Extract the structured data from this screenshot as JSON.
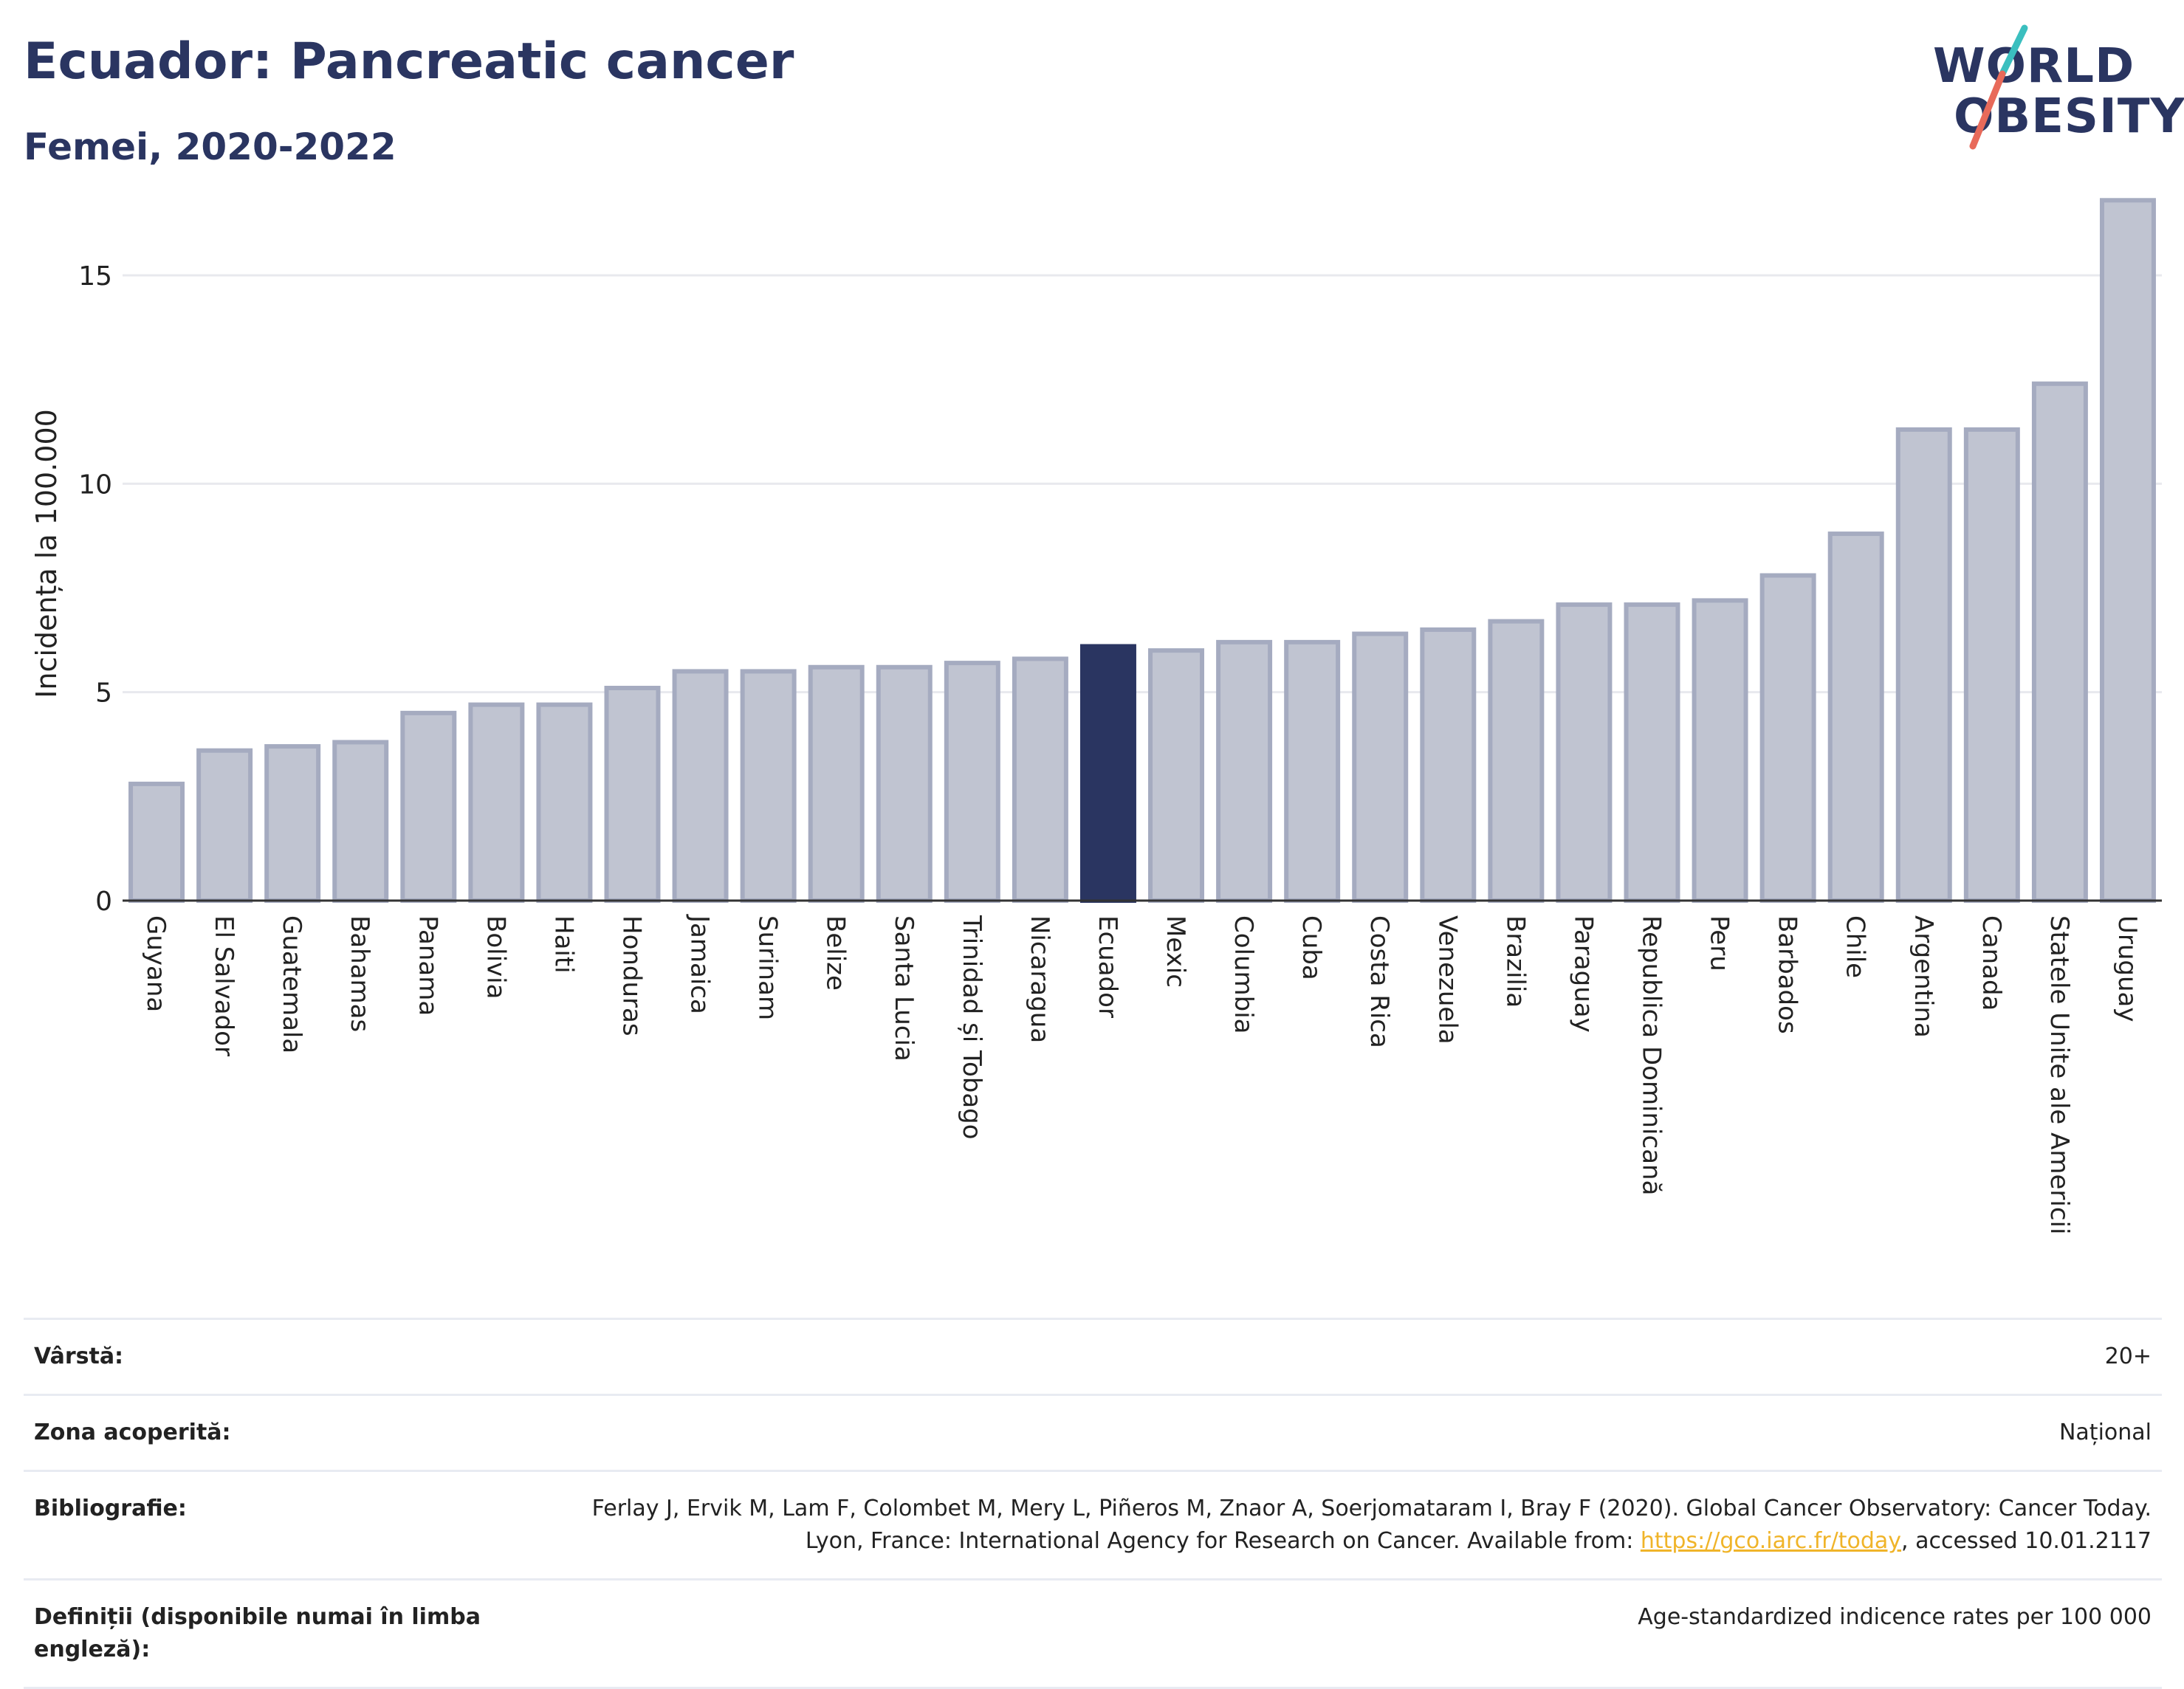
{
  "header": {
    "title": "Ecuador: Pancreatic cancer",
    "subtitle": "Femei, 2020-2022"
  },
  "logo": {
    "line1": "WORLD",
    "line2": "OBESITY",
    "colors": {
      "text": "#2a3561",
      "slash_top": "#3bbfbf",
      "slash_bottom": "#e86a5a"
    }
  },
  "colors": {
    "bar": "#c0c4d1",
    "bar_border": "#a5abc0",
    "highlight": "#2a3561",
    "grid": "#e8e9ee",
    "axis": "#333333"
  },
  "chart_data": {
    "type": "bar",
    "ylabel": "Incidența la 100.000",
    "ylim": [
      0,
      17
    ],
    "yticks": [
      0,
      5,
      10,
      15
    ],
    "grid": true,
    "highlight": "Ecuador",
    "categories": [
      "Guyana",
      "El Salvador",
      "Guatemala",
      "Bahamas",
      "Panama",
      "Bolivia",
      "Haiti",
      "Honduras",
      "Jamaica",
      "Surinam",
      "Belize",
      "Santa Lucia",
      "Trinidad și Tobago",
      "Nicaragua",
      "Ecuador",
      "Mexic",
      "Columbia",
      "Cuba",
      "Costa Rica",
      "Venezuela",
      "Brazilia",
      "Paraguay",
      "Republica Dominicană",
      "Peru",
      "Barbados",
      "Chile",
      "Argentina",
      "Canada",
      "Statele Unite ale Americii",
      "Uruguay"
    ],
    "values": [
      2.8,
      3.6,
      3.7,
      3.8,
      4.5,
      4.7,
      4.7,
      5.1,
      5.5,
      5.5,
      5.6,
      5.6,
      5.7,
      5.8,
      6.1,
      6.0,
      6.2,
      6.2,
      6.4,
      6.5,
      6.7,
      7.1,
      7.1,
      7.2,
      7.8,
      8.8,
      11.3,
      11.3,
      12.4,
      16.8
    ]
  },
  "info": {
    "age_label": "Vârstă:",
    "age_value": "20+",
    "zone_label": "Zona acoperită:",
    "zone_value": "Național",
    "bib_label": "Bibliografie:",
    "bib_text_1": "Ferlay J, Ervik M, Lam F, Colombet M, Mery L, Piñeros M, Znaor A, Soerjomataram I, Bray F (2020). Global Cancer Observatory: Cancer Today. Lyon, France: International Agency for Research on Cancer. Available from: ",
    "bib_link": "https://gco.iarc.fr/today",
    "bib_text_2": ", accessed 10.01.2117",
    "def_label": "Definiții (disponibile numai în limba engleză):",
    "def_value": "Age-standardized indicence rates per 100 000"
  }
}
